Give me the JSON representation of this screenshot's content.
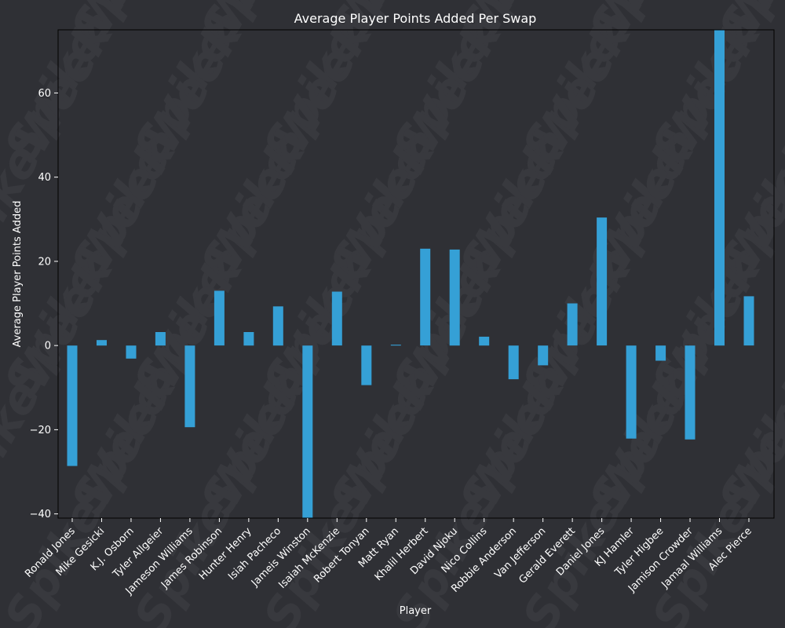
{
  "colors": {
    "background": "#2f3035",
    "plot_background": "#2f3035",
    "bar": "#35a0d6",
    "axis": "#000000",
    "text": "#ffffff",
    "watermark": "#38393e"
  },
  "watermark_text": "SpikeWeek",
  "chart_data": {
    "type": "bar",
    "title": "Average Player Points Added Per Swap",
    "xlabel": "Player",
    "ylabel": "Average Player Points Added",
    "ylim": [
      -41,
      75
    ],
    "yticks": [
      -40,
      -20,
      0,
      20,
      40,
      60
    ],
    "ytick_labels": [
      "−40",
      "−20",
      "0",
      "20",
      "40",
      "60"
    ],
    "grid": false,
    "categories": [
      "Ronald Jones",
      "Mike Gesicki",
      "K.J. Osborn",
      "Tyler Allgeier",
      "Jameson Williams",
      "James Robinson",
      "Hunter Henry",
      "Isiah Pacheco",
      "Jameis Winston",
      "Isaiah McKenzie",
      "Robert Tonyan",
      "Matt Ryan",
      "Khalil Herbert",
      "David Njoku",
      "Nico Collins",
      "Robbie Anderson",
      "Van Jefferson",
      "Gerald Everett",
      "Daniel Jones",
      "KJ Hamler",
      "Tyler Higbee",
      "Jamison Crowder",
      "Jamaal Williams",
      "Alec Pierce"
    ],
    "values": [
      -28.6,
      1.3,
      -3.1,
      3.2,
      -19.4,
      13.0,
      3.2,
      9.3,
      -41.0,
      12.8,
      -9.4,
      0.2,
      23.0,
      22.8,
      2.1,
      -8.0,
      -4.7,
      10.0,
      30.4,
      -22.1,
      -3.6,
      -22.3,
      75.0,
      11.7
    ]
  }
}
